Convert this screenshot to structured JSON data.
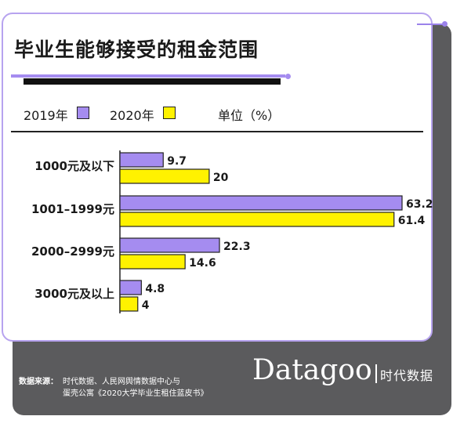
{
  "title": "毕业生能够接受的租金范围",
  "legend": {
    "items": [
      {
        "label": "2019年",
        "color": "#a58cf0"
      },
      {
        "label": "2020年",
        "color": "#fff200"
      }
    ],
    "unit": "单位（%）"
  },
  "chart_data": {
    "type": "bar",
    "orientation": "horizontal",
    "categories": [
      "1000元及以下",
      "1001–1999元",
      "2000–2999元",
      "3000元及以上"
    ],
    "series": [
      {
        "name": "2019年",
        "color": "#a58cf0",
        "values": [
          9.7,
          63.2,
          22.3,
          4.8
        ]
      },
      {
        "name": "2020年",
        "color": "#fff200",
        "values": [
          20,
          61.4,
          14.6,
          4
        ]
      }
    ],
    "unit": "%",
    "xlim": [
      0,
      63.2
    ],
    "grid": false,
    "legend_position": "top-left"
  },
  "footer": {
    "source_label": "数据来源：",
    "source_line1": "时代数据、人民网舆情数据中心与",
    "source_line2": "蛋壳公寓《2020大学毕业生租住蓝皮书》",
    "brand": "Datagoo",
    "brand_cn": "时代数据"
  }
}
